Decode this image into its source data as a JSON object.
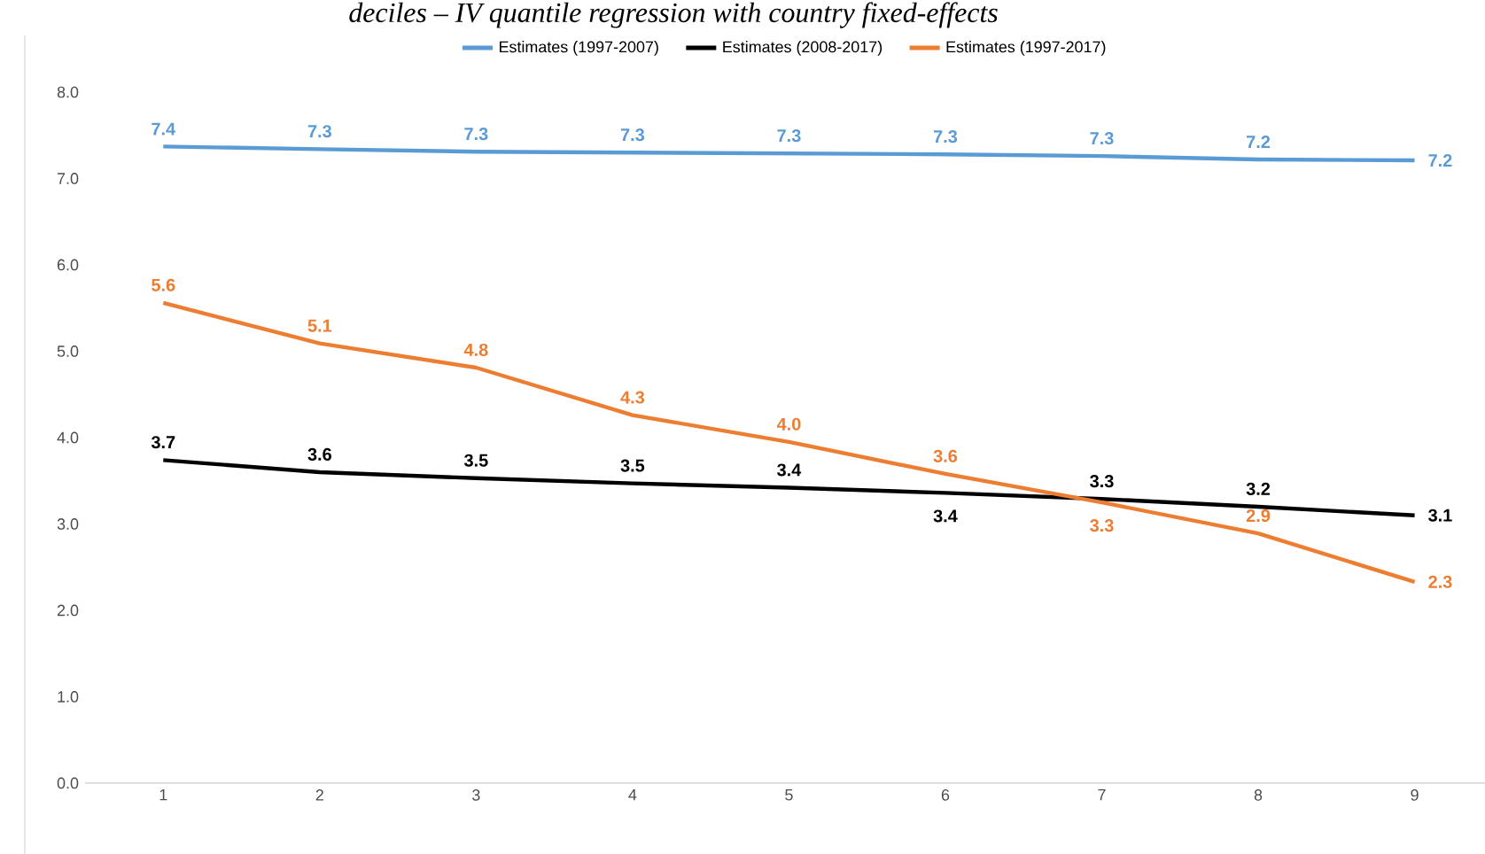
{
  "chart_data": {
    "type": "line",
    "title": "deciles – IV quantile regression with country fixed-effects",
    "categories": [
      "1",
      "2",
      "3",
      "4",
      "5",
      "6",
      "7",
      "8",
      "9"
    ],
    "series": [
      {
        "name": "Estimates (1997-2007)",
        "color": "#5b9bd5",
        "values": [
          7.37,
          7.34,
          7.31,
          7.3,
          7.29,
          7.28,
          7.26,
          7.22,
          7.21
        ],
        "value_labels": [
          "7.4",
          "7.3",
          "7.3",
          "7.3",
          "7.3",
          "7.3",
          "7.3",
          "7.2",
          "7.2"
        ]
      },
      {
        "name": "Estimates (2008-2017)",
        "color": "#000000",
        "values": [
          3.74,
          3.6,
          3.53,
          3.47,
          3.42,
          3.36,
          3.29,
          3.2,
          3.1
        ],
        "value_labels": [
          "3.7",
          "3.6",
          "3.5",
          "3.5",
          "3.4",
          "3.4",
          "3.3",
          "3.2",
          "3.1"
        ]
      },
      {
        "name": "Estimates (1997-2017)",
        "color": "#ed7d31",
        "values": [
          5.56,
          5.09,
          4.81,
          4.26,
          3.95,
          3.58,
          3.25,
          2.89,
          2.33
        ],
        "value_labels": [
          "5.6",
          "5.1",
          "4.8",
          "4.3",
          "4.0",
          "3.6",
          "3.3",
          "2.9",
          "2.3"
        ]
      }
    ],
    "ylim": [
      0,
      8
    ],
    "yticks": [
      {
        "value": 0,
        "label": "0.0"
      },
      {
        "value": 1,
        "label": "1.0"
      },
      {
        "value": 2,
        "label": "2.0"
      },
      {
        "value": 3,
        "label": "3.0"
      },
      {
        "value": 4,
        "label": "4.0"
      },
      {
        "value": 5,
        "label": "5.0"
      },
      {
        "value": 6,
        "label": "6.0"
      },
      {
        "value": 7,
        "label": "7.0"
      },
      {
        "value": 8,
        "label": "8.0"
      }
    ],
    "legend": "top",
    "marker": "none",
    "line_style": "solid"
  }
}
